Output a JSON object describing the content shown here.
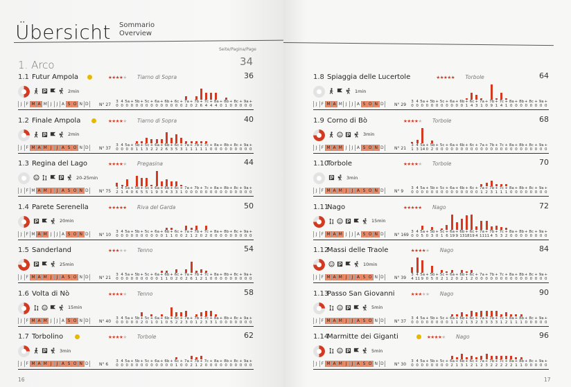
{
  "header": {
    "title": "Übersicht",
    "subtitle_1": "Sommario",
    "subtitle_2": "Overview",
    "page_label": "Seite/Pagina/Page"
  },
  "section": {
    "title": "1. Arco",
    "page": "34"
  },
  "footer": {
    "left_page": "16",
    "right_page": "17"
  },
  "grade_labels": [
    "3",
    "4",
    "5a",
    "+",
    "5b",
    "+",
    "5c",
    "+",
    "6a",
    "+",
    "6b",
    "+",
    "6c",
    "+",
    "7a",
    "+",
    "7b",
    "+",
    "7c",
    "+",
    "8a",
    "+",
    "8b",
    "+",
    "8c",
    "+",
    "9a",
    "+"
  ],
  "month_labels": [
    "J",
    "F",
    "M",
    "A",
    "M",
    "J",
    "J",
    "A",
    "S",
    "O",
    "N",
    "D"
  ],
  "colors": {
    "accent": "#d23a22",
    "season": "#e98a68",
    "badge": "#e6b800"
  },
  "entries": [
    {
      "num": "1.1",
      "name": "Futur Ampola",
      "stars": 4,
      "location": "Tiarno di Sopra",
      "page": "36",
      "approach": "2min",
      "routes": "N° 27",
      "badge": true,
      "months": [
        0,
        0,
        1,
        1,
        0,
        0,
        0,
        0,
        1,
        1,
        0,
        0
      ],
      "icons": [
        "walk-icon",
        "parking-icon",
        "flag-icon",
        "hiker-icon"
      ],
      "disc": "half",
      "counts": [
        0,
        0,
        0,
        0,
        0,
        0,
        0,
        0,
        0,
        0,
        0,
        0,
        0,
        0,
        2,
        0,
        2,
        6,
        4,
        4,
        4,
        0,
        1,
        0,
        0,
        0,
        0,
        0
      ]
    },
    {
      "num": "1.2",
      "name": "Finale Ampola",
      "stars": 4,
      "location": "Tiarno di Sopra",
      "page": "40",
      "approach": "2min",
      "routes": "N° 37",
      "badge": true,
      "months": [
        0,
        0,
        1,
        1,
        1,
        1,
        1,
        1,
        1,
        1,
        0,
        0
      ],
      "icons": [
        "walk-icon",
        "parking-icon",
        "flag-icon",
        "hiker-icon"
      ],
      "disc": "quarter",
      "counts": [
        0,
        0,
        0,
        0,
        1,
        1,
        3,
        2,
        2,
        2,
        6,
        3,
        5,
        3,
        1,
        1,
        1,
        1,
        1,
        0,
        0,
        0,
        0,
        0,
        0,
        0,
        0,
        0
      ]
    },
    {
      "num": "1.3",
      "name": "Regina del Lago",
      "stars": 4,
      "location": "Pregasina",
      "page": "44",
      "approach": "20-25min",
      "routes": "N° 75",
      "badge": false,
      "months": [
        0,
        0,
        0,
        1,
        1,
        1,
        1,
        1,
        1,
        1,
        1,
        0
      ],
      "icons": [
        "smiley-icon",
        "kid-icon",
        "flag-icon",
        "parking-icon",
        "hiker-icon"
      ],
      "disc": "none",
      "counts": [
        2,
        1,
        4,
        0,
        6,
        5,
        5,
        1,
        9,
        3,
        4,
        3,
        3,
        1,
        0,
        0,
        0,
        0,
        0,
        0,
        0,
        0,
        0,
        0,
        0,
        0,
        0,
        0
      ]
    },
    {
      "num": "1.4",
      "name": "Parete Serenella",
      "stars": 5,
      "location": "Riva del Garda",
      "page": "50",
      "approach": "20min",
      "routes": "N° 10",
      "badge": false,
      "months": [
        0,
        0,
        0,
        1,
        1,
        0,
        0,
        0,
        1,
        1,
        1,
        0
      ],
      "icons": [
        "parking-icon",
        "flag-icon",
        "hiker-icon"
      ],
      "disc": "half",
      "counts": [
        0,
        0,
        0,
        0,
        0,
        0,
        0,
        0,
        0,
        0,
        1,
        1,
        0,
        0,
        2,
        1,
        2,
        0,
        2,
        0,
        0,
        0,
        0,
        0,
        0,
        0,
        0,
        0
      ]
    },
    {
      "num": "1.5",
      "name": "Sanderland",
      "stars": 3,
      "location": "Tenno",
      "page": "54",
      "approach": "25min",
      "routes": "N° 21",
      "badge": false,
      "months": [
        0,
        0,
        1,
        1,
        1,
        1,
        1,
        1,
        1,
        1,
        0,
        0
      ],
      "icons": [
        "parking-icon",
        "flag-icon",
        "hiker-icon"
      ],
      "disc": "full",
      "counts": [
        0,
        0,
        0,
        0,
        0,
        0,
        0,
        0,
        0,
        1,
        1,
        0,
        2,
        0,
        2,
        6,
        1,
        2,
        1,
        0,
        0,
        0,
        0,
        0,
        0,
        0,
        0,
        0
      ]
    },
    {
      "num": "1.6",
      "name": "Volta di Nò",
      "stars": 4,
      "location": "Tenno",
      "page": "58",
      "approach": "15min",
      "routes": "N° 40",
      "badge": false,
      "months": [
        0,
        0,
        1,
        1,
        1,
        0,
        0,
        0,
        1,
        1,
        0,
        0
      ],
      "icons": [
        "kid-icon",
        "smiley-icon",
        "flag-icon",
        "hiker-icon"
      ],
      "disc": "half",
      "counts": [
        0,
        0,
        0,
        0,
        0,
        2,
        0,
        1,
        0,
        1,
        0,
        5,
        2,
        2,
        3,
        0,
        1,
        2,
        3,
        3,
        1,
        0,
        0,
        0,
        0,
        0,
        0,
        0
      ]
    },
    {
      "num": "1.7",
      "name": "Torbolino",
      "stars": 4,
      "location": "Torbole",
      "page": "62",
      "approach": "3min",
      "routes": "N° 6",
      "badge": true,
      "months": [
        0,
        0,
        1,
        1,
        1,
        1,
        1,
        1,
        1,
        1,
        1,
        0
      ],
      "icons": [
        "walk-icon",
        "parking-icon",
        "hiker-icon"
      ],
      "disc": "quarter",
      "counts": [
        0,
        0,
        0,
        0,
        0,
        0,
        0,
        0,
        0,
        0,
        0,
        0,
        1,
        0,
        0,
        2,
        1,
        2,
        0,
        0,
        0,
        0,
        0,
        0,
        0,
        0,
        0,
        0
      ]
    },
    {
      "num": "1.8",
      "name": "Spiaggia delle Lucertole",
      "stars": 5,
      "location": "Torbole",
      "page": "64",
      "approach": "1min",
      "routes": "N° 29",
      "badge": false,
      "months": [
        0,
        0,
        1,
        1,
        0,
        0,
        0,
        0,
        1,
        1,
        1,
        0
      ],
      "icons": [
        "walk-icon",
        "flag-icon",
        "hiker-icon"
      ],
      "disc": "none",
      "counts": [
        0,
        0,
        0,
        0,
        0,
        0,
        0,
        0,
        0,
        0,
        0,
        1,
        4,
        3,
        1,
        0,
        9,
        1,
        4,
        1,
        0,
        0,
        0,
        0,
        0,
        0,
        0,
        0
      ]
    },
    {
      "num": "1.9",
      "name": "Corno di Bò",
      "stars": 4,
      "location": "Torbole",
      "page": "68",
      "approach": "3min",
      "routes": "N° 21",
      "badge": false,
      "months": [
        0,
        0,
        1,
        1,
        1,
        0,
        0,
        0,
        1,
        1,
        1,
        0
      ],
      "icons": [
        "walk-icon",
        "smiley-icon",
        "parking-icon",
        "hiker-icon"
      ],
      "disc": "full",
      "counts": [
        1,
        3,
        14,
        0,
        2,
        0,
        0,
        0,
        0,
        0,
        0,
        0,
        0,
        0,
        0,
        0,
        0,
        0,
        0,
        0,
        0,
        0,
        0,
        0,
        0,
        0,
        0,
        0
      ]
    },
    {
      "num": "1.10",
      "name": "Torbole",
      "stars": 4,
      "location": "Torbole",
      "page": "70",
      "approach": "3min",
      "routes": "N° 9",
      "badge": false,
      "months": [
        0,
        0,
        1,
        1,
        1,
        1,
        1,
        1,
        1,
        1,
        1,
        0
      ],
      "icons": [
        "parking-icon",
        "hiker-icon"
      ],
      "disc": "none",
      "counts": [
        0,
        0,
        0,
        0,
        0,
        0,
        0,
        0,
        0,
        0,
        0,
        0,
        0,
        0,
        1,
        2,
        3,
        1,
        1,
        1,
        0,
        0,
        0,
        0,
        0,
        0,
        0,
        0
      ]
    },
    {
      "num": "1.11",
      "name": "Nago",
      "stars": 5,
      "location": "Nago",
      "page": "72",
      "approach": "15min",
      "routes": "N° 169",
      "badge": false,
      "months": [
        0,
        0,
        1,
        1,
        1,
        0,
        0,
        0,
        1,
        1,
        1,
        0
      ],
      "icons": [
        "kid-icon",
        "smiley-icon",
        "parking-icon",
        "flag-icon",
        "hiker-icon"
      ],
      "disc": "full",
      "counts": [
        0,
        0,
        5,
        0,
        3,
        0,
        1,
        6,
        19,
        9,
        13,
        18,
        19,
        4,
        11,
        11,
        4,
        5,
        3,
        2,
        0,
        0,
        0,
        0,
        0,
        0,
        0,
        0
      ]
    },
    {
      "num": "1.12",
      "name": "Massi delle Traole",
      "stars": 4,
      "location": "Nago",
      "page": "84",
      "approach": "10min",
      "routes": "N° 39",
      "badge": false,
      "months": [
        0,
        0,
        1,
        1,
        1,
        1,
        1,
        1,
        1,
        1,
        0,
        0
      ],
      "icons": [
        "smiley-icon",
        "parking-icon",
        "flag-icon",
        "hiker-icon"
      ],
      "disc": "full",
      "counts": [
        4,
        11,
        9,
        0,
        5,
        0,
        2,
        1,
        2,
        0,
        2,
        1,
        2,
        0,
        0,
        0,
        0,
        0,
        0,
        0,
        0,
        0,
        0,
        0,
        0,
        0,
        0,
        0
      ]
    },
    {
      "num": "1.13",
      "name": "Passo San Giovanni",
      "stars": 3,
      "location": "Nago",
      "page": "90",
      "approach": "5min",
      "routes": "N° 37",
      "badge": false,
      "months": [
        0,
        0,
        1,
        1,
        1,
        1,
        1,
        1,
        1,
        1,
        0,
        0
      ],
      "icons": [
        "kid-icon",
        "smiley-icon",
        "parking-icon",
        "flag-icon",
        "hiker-icon"
      ],
      "disc": "quarter",
      "counts": [
        0,
        0,
        0,
        0,
        0,
        0,
        0,
        0,
        1,
        1,
        2,
        1,
        3,
        2,
        3,
        3,
        3,
        3,
        1,
        2,
        1,
        1,
        1,
        0,
        0,
        0,
        0,
        0
      ]
    },
    {
      "num": "1.14",
      "name": "Marmitte dei Giganti",
      "stars": 4,
      "location": "Nago",
      "page": "96",
      "approach": "5min",
      "routes": "N° 30",
      "badge": true,
      "months": [
        0,
        0,
        1,
        1,
        1,
        1,
        1,
        1,
        1,
        1,
        0,
        0
      ],
      "icons": [
        "kid-icon",
        "smiley-icon",
        "parking-icon",
        "flag-icon",
        "hiker-icon"
      ],
      "disc": "half",
      "counts": [
        0,
        0,
        0,
        0,
        0,
        0,
        0,
        0,
        2,
        1,
        3,
        1,
        2,
        1,
        2,
        3,
        2,
        2,
        2,
        2,
        2,
        1,
        1,
        0,
        0,
        0,
        0,
        0
      ]
    }
  ]
}
